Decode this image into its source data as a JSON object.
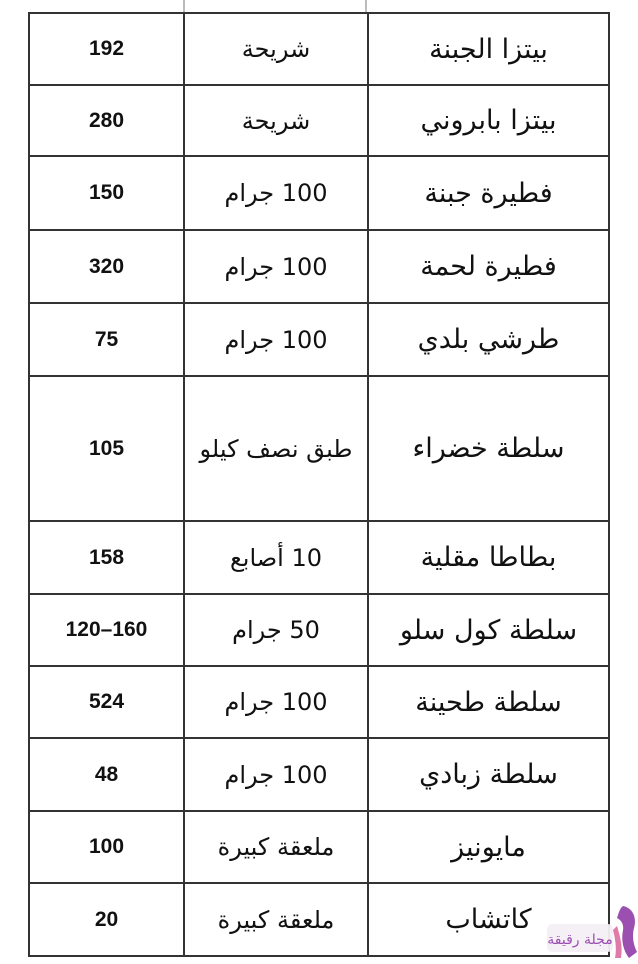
{
  "rows": [
    {
      "name": "بيتزا الجبنة",
      "unit": "شريحة",
      "calories": "192"
    },
    {
      "name": "بيتزا بابروني",
      "unit": "شريحة",
      "calories": "280"
    },
    {
      "name": "فطيرة جبنة",
      "unit": "100 جرام",
      "calories": "150"
    },
    {
      "name": "فطيرة لحمة",
      "unit": "100 جرام",
      "calories": "320"
    },
    {
      "name": "طرشي بلدي",
      "unit": "100 جرام",
      "calories": "75"
    },
    {
      "name": "سلطة خضراء",
      "unit": "طبق نصف كيلو",
      "calories": "105"
    },
    {
      "name": "بطاطا مقلية",
      "unit": "10 أصابع",
      "calories": "158"
    },
    {
      "name": "سلطة كول سلو",
      "unit": "50 جرام",
      "calories": "120–160"
    },
    {
      "name": "سلطة طحينة",
      "unit": "100 جرام",
      "calories": "524"
    },
    {
      "name": "سلطة زبادي",
      "unit": "100 جرام",
      "calories": "48"
    },
    {
      "name": "مايونيز",
      "unit": "ملعقة كبيرة",
      "calories": "100"
    },
    {
      "name": "كاتشاب",
      "unit": "ملعقة كبيرة",
      "calories": "20"
    }
  ],
  "watermark": {
    "text": "مجلة رقيقة",
    "colors": [
      "#9b4fb0",
      "#e07aa8"
    ]
  }
}
